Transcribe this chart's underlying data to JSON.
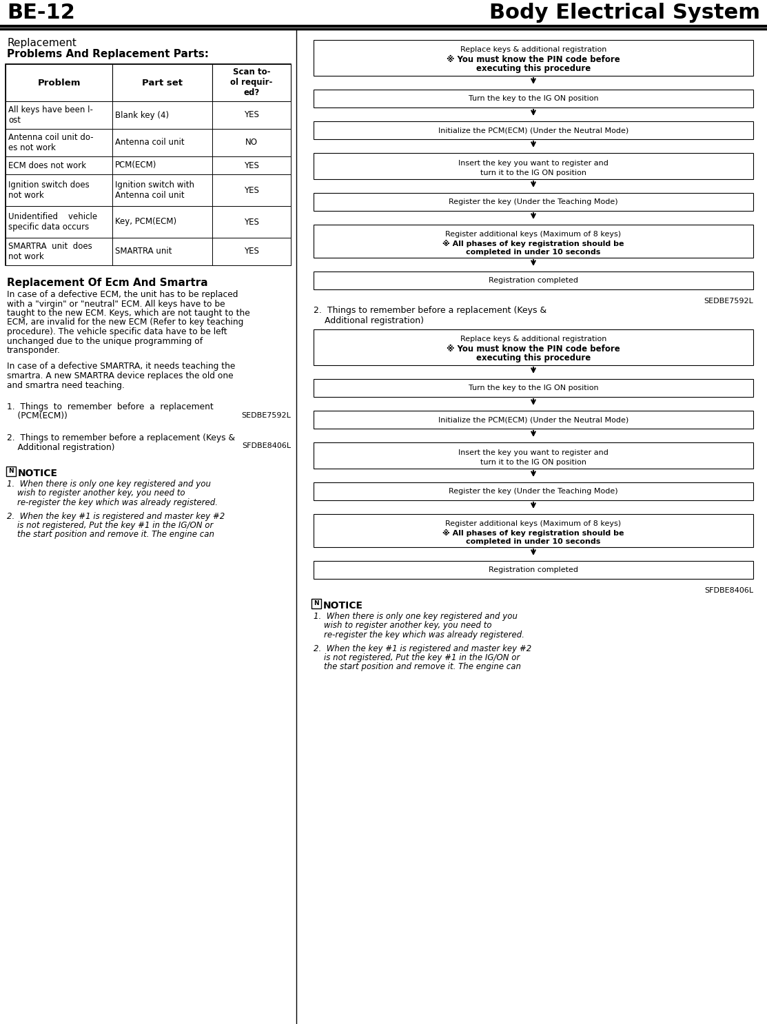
{
  "title_left": "BE-12",
  "title_right": "Body Electrical System",
  "section_title": "Replacement",
  "table_title": "Problems And Replacement Parts:",
  "table_headers": [
    "Problem",
    "Part set",
    "Scan to-\nol requir-\ned?"
  ],
  "table_rows": [
    [
      "All keys have been l-\nost",
      "Blank key (4)",
      "YES"
    ],
    [
      "Antenna coil unit do-\nes not work",
      "Antenna coil unit",
      "NO"
    ],
    [
      "ECM does not work",
      "PCM(ECM)",
      "YES"
    ],
    [
      "Ignition switch does\nnot work",
      "Ignition switch with\nAntenna coil unit",
      "YES"
    ],
    [
      "Unidentified    vehicle\nspecific data occurs",
      "Key, PCM(ECM)",
      "YES"
    ],
    [
      "SMARTRA  unit  does\nnot work",
      "SMARTRA unit",
      "YES"
    ]
  ],
  "section2_title": "Replacement Of Ecm And Smartra",
  "para1_lines": [
    "In case of a defective ECM, the unit has to be replaced",
    "with a \"virgin\" or \"neutral\" ECM. All keys have to be",
    "taught to the new ECM. Keys, which are not taught to the",
    "ECM, are invalid for the new ECM (Refer to key teaching",
    "procedure). The vehicle specific data have to be left",
    "unchanged due to the unique programming of",
    "transponder."
  ],
  "para2_lines": [
    "In case of a defective SMARTRA, it needs teaching the",
    "smartra. A new SMARTRA device replaces the old one",
    "and smartra need teaching."
  ],
  "item1_lines": [
    "1.  Things  to  remember  before  a  replacement",
    "    (PCM(ECM))"
  ],
  "item1_code": "SEDBE7592L",
  "item2_lines": [
    "2.  Things to remember before a replacement (Keys &",
    "    Additional registration)"
  ],
  "item2_code": "SFDBE8406L",
  "notice_title": "NOTICE",
  "notice_lines1": [
    "1.  When there is only one key registered and you",
    "    wish to register another key, you need to",
    "    re-register the key which was already registered."
  ],
  "notice_lines2": [
    "2.  When the key #1 is registered and master key #2",
    "    is not registered, Put the key #1 in the IG/ON or",
    "    the start position and remove it. The engine can"
  ],
  "fc_box1_line1": "Replace keys & additional registration",
  "fc_box1_line2": "※ You must know the PIN code before",
  "fc_box1_line3": "executing this procedure",
  "fc_box2": "Turn the key to the IG ON position",
  "fc_box3": "Initialize the PCM(ECM) (Under the Neutral Mode)",
  "fc_box4_line1": "Insert the key you want to register and",
  "fc_box4_line2": "turn it to the IG ON position",
  "fc_box5": "Register the key (Under the Teaching Mode)",
  "fc_box6_line1": "Register additional keys (Maximum of 8 keys)",
  "fc_box6_line2": "※ All phases of key registration should be",
  "fc_box6_line3": "completed in under 10 seconds",
  "fc_box7": "Registration completed",
  "bg_color": "#ffffff",
  "border_color": "#000000",
  "font_color": "#000000"
}
